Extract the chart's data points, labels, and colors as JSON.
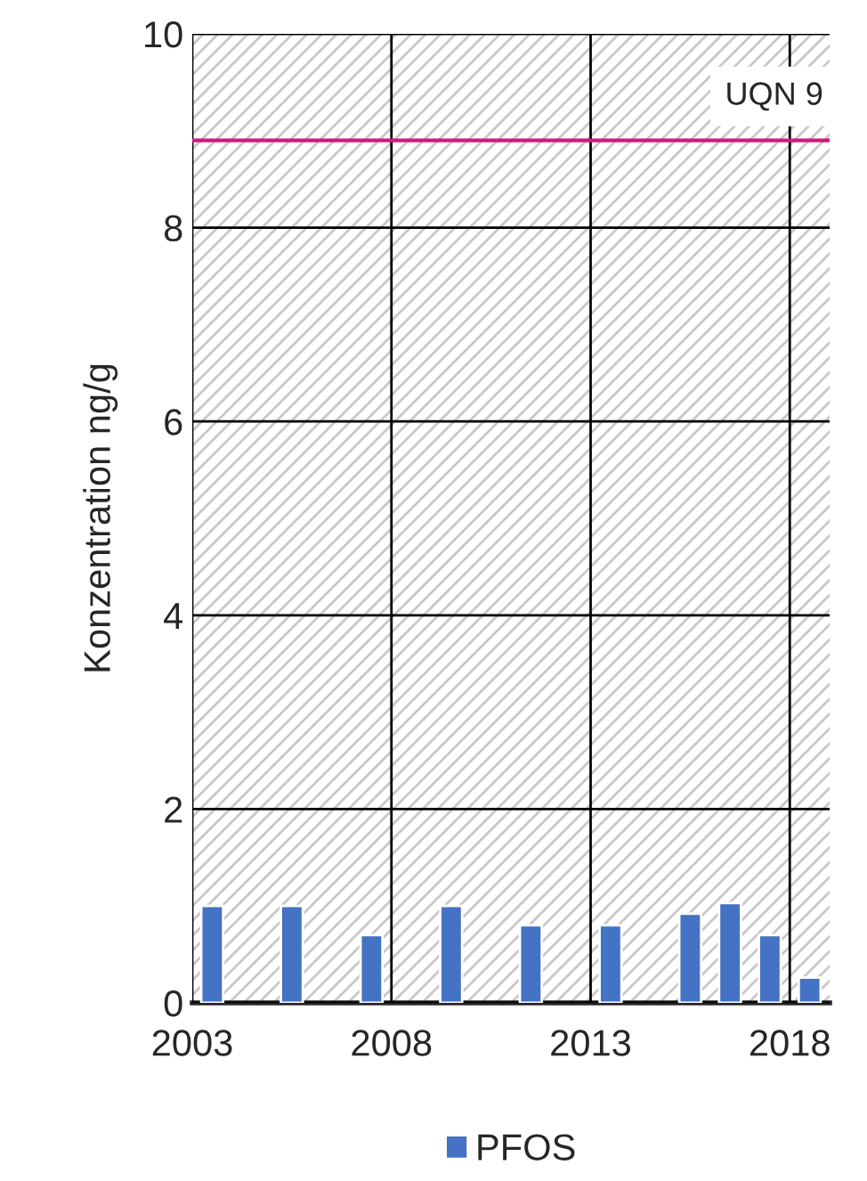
{
  "chart_data": {
    "type": "bar",
    "ylabel": "Konzentration ng/g",
    "x": [
      2003.5,
      2005.5,
      2007.5,
      2009.5,
      2011.5,
      2013.5,
      2015.5,
      2016.5,
      2017.5,
      2018.5
    ],
    "series": [
      {
        "name": "PFOS",
        "color": "#4472c4",
        "values": [
          1.0,
          1.0,
          0.7,
          1.0,
          0.8,
          0.8,
          0.92,
          1.03,
          0.7,
          0.26
        ]
      }
    ],
    "xlim": [
      2003,
      2019
    ],
    "xticks": [
      2003,
      2008,
      2013,
      2018
    ],
    "ylim": [
      0,
      10
    ],
    "yticks": [
      0,
      2,
      4,
      6,
      8,
      10
    ],
    "ref_lines": [
      {
        "axis": "y",
        "value": 8.9,
        "label": "UQN 9",
        "color": "#d6177e"
      }
    ],
    "grid": true,
    "legend": "bottom"
  }
}
